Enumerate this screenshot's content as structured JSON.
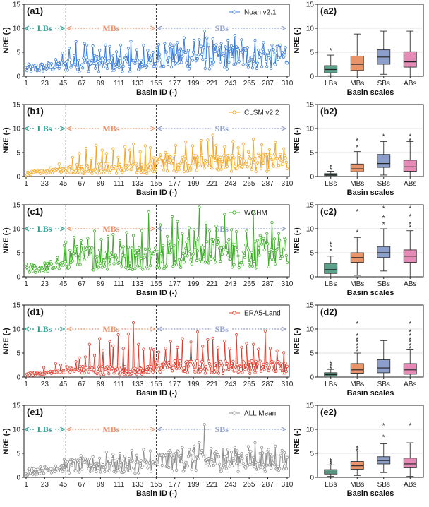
{
  "chart_data": {
    "type": "line+box",
    "basin_ticks": [
      "1",
      "23",
      "45",
      "67",
      "89",
      "111",
      "133",
      "155",
      "177",
      "199",
      "221",
      "243",
      "265",
      "287",
      "310"
    ],
    "n_basins": 310,
    "boundaries": [
      48,
      155
    ],
    "regions": [
      {
        "label": "LBs",
        "from": 1,
        "to": 48,
        "color": "#2a9d8f"
      },
      {
        "label": "MBs",
        "from": 48,
        "to": 155,
        "color": "#e8916a"
      },
      {
        "label": "SBs",
        "from": 155,
        "to": 310,
        "color": "#8f9fcc"
      }
    ],
    "ylim": [
      0,
      15
    ],
    "yticks": [
      "0",
      "5",
      "10",
      "15"
    ],
    "ylabel": "NRE (-)",
    "xlabel_left": "Basin ID (-)",
    "xlabel_right": "Basin scales",
    "box_categories": [
      "LBs",
      "MBs",
      "SBs",
      "ABs"
    ],
    "box_colors": [
      "#5ba08a",
      "#e8956a",
      "#8c9fcb",
      "#e88ab8"
    ],
    "panels": [
      {
        "left_label": "(a1)",
        "right_label": "(a2)",
        "series": "Noah v2.1",
        "color": "#3b7dd8",
        "levels": {
          "LBs": 1.5,
          "MBs": 2.7,
          "SBs": 4.0
        },
        "spikes": [
          [
            52,
            5.8
          ],
          [
            60,
            7.2
          ],
          [
            70,
            6.8
          ],
          [
            73,
            6.5
          ],
          [
            80,
            6.3
          ],
          [
            88,
            5.4
          ],
          [
            95,
            6.5
          ],
          [
            100,
            6.2
          ],
          [
            108,
            5.1
          ],
          [
            113,
            6.5
          ],
          [
            122,
            5.8
          ],
          [
            125,
            7.3
          ],
          [
            132,
            5.5
          ],
          [
            140,
            6.4
          ],
          [
            145,
            5.4
          ],
          [
            151,
            5.0
          ],
          [
            158,
            6.6
          ],
          [
            165,
            6.8
          ],
          [
            172,
            6.7
          ],
          [
            180,
            7.0
          ],
          [
            188,
            8.0
          ],
          [
            200,
            7.5
          ],
          [
            206,
            7.6
          ],
          [
            212,
            9.4
          ],
          [
            215,
            8.0
          ],
          [
            222,
            7.8
          ],
          [
            232,
            6.8
          ],
          [
            240,
            7.5
          ],
          [
            248,
            8.5
          ],
          [
            256,
            7.6
          ],
          [
            263,
            6.0
          ],
          [
            272,
            7.5
          ],
          [
            282,
            7.0
          ],
          [
            292,
            6.5
          ],
          [
            302,
            6.5
          ],
          [
            308,
            6.0
          ],
          [
            36,
            3.5
          ],
          [
            44,
            4.8
          ]
        ],
        "boxes": [
          {
            "min": 0.1,
            "q1": 0.7,
            "median": 1.4,
            "q3": 2.2,
            "max": 4.4,
            "outliers": [
              5.6
            ]
          },
          {
            "min": 0.0,
            "q1": 1.2,
            "median": 2.5,
            "q3": 4.2,
            "max": 8.8,
            "outliers": []
          },
          {
            "min": 0.4,
            "q1": 2.5,
            "median": 4.0,
            "q3": 5.5,
            "max": 9.4,
            "outliers": []
          },
          {
            "min": 0.0,
            "q1": 1.9,
            "median": 3.0,
            "q3": 5.1,
            "max": 9.4,
            "outliers": []
          }
        ]
      },
      {
        "left_label": "(b1)",
        "right_label": "(b2)",
        "series": "CLSM v2.2",
        "color": "#f5a623",
        "levels": {
          "LBs": 0.6,
          "MBs": 1.7,
          "SBs": 2.9
        },
        "spikes": [
          [
            56,
            4.0
          ],
          [
            64,
            4.8
          ],
          [
            72,
            5.9
          ],
          [
            78,
            3.8
          ],
          [
            84,
            6.5
          ],
          [
            91,
            5.5
          ],
          [
            96,
            4.8
          ],
          [
            104,
            5.8
          ],
          [
            110,
            4.0
          ],
          [
            118,
            6.2
          ],
          [
            124,
            5.5
          ],
          [
            128,
            6.8
          ],
          [
            136,
            5.2
          ],
          [
            142,
            6.4
          ],
          [
            148,
            6.0
          ],
          [
            152,
            3.9
          ],
          [
            166,
            5.0
          ],
          [
            178,
            6.5
          ],
          [
            190,
            7.2
          ],
          [
            198,
            6.4
          ],
          [
            208,
            7.5
          ],
          [
            216,
            7.6
          ],
          [
            222,
            8.6
          ],
          [
            226,
            6.5
          ],
          [
            236,
            6.2
          ],
          [
            246,
            7.3
          ],
          [
            252,
            6.0
          ],
          [
            258,
            6.8
          ],
          [
            264,
            5.2
          ],
          [
            270,
            7.8
          ],
          [
            280,
            6.6
          ],
          [
            289,
            5.6
          ],
          [
            296,
            7.1
          ],
          [
            306,
            5.8
          ],
          [
            30,
            1.8
          ],
          [
            40,
            2.6
          ]
        ],
        "boxes": [
          {
            "min": 0.0,
            "q1": 0.2,
            "median": 0.4,
            "q3": 0.6,
            "max": 1.1,
            "outliers": [
              1.6,
              2.2
            ]
          },
          {
            "min": 0.0,
            "q1": 1.0,
            "median": 1.6,
            "q3": 2.6,
            "max": 5.2,
            "outliers": [
              6.3,
              7.7
            ]
          },
          {
            "min": 0.3,
            "q1": 1.9,
            "median": 2.7,
            "q3": 4.6,
            "max": 7.3,
            "outliers": [
              8.6
            ]
          },
          {
            "min": 0.0,
            "q1": 1.1,
            "median": 2.0,
            "q3": 3.4,
            "max": 7.3,
            "outliers": [
              7.7,
              8.6
            ]
          }
        ]
      },
      {
        "left_label": "(c1)",
        "right_label": "(c2)",
        "series": "WGHM",
        "color": "#3fae2a",
        "levels": {
          "LBs": 1.6,
          "MBs": 4.0,
          "SBs": 5.0
        },
        "spikes": [
          [
            46,
            6.5
          ],
          [
            48,
            7.2
          ],
          [
            58,
            8.2
          ],
          [
            66,
            7.5
          ],
          [
            74,
            8.0
          ],
          [
            82,
            9.5
          ],
          [
            90,
            7.8
          ],
          [
            98,
            8.4
          ],
          [
            104,
            8.8
          ],
          [
            112,
            7.5
          ],
          [
            120,
            9.2
          ],
          [
            128,
            8.6
          ],
          [
            138,
            9.6
          ],
          [
            146,
            13.5
          ],
          [
            160,
            10.8
          ],
          [
            168,
            8.4
          ],
          [
            174,
            12.5
          ],
          [
            180,
            11.5
          ],
          [
            186,
            9.0
          ],
          [
            194,
            10.2
          ],
          [
            200,
            9.8
          ],
          [
            206,
            14.5
          ],
          [
            214,
            11.2
          ],
          [
            218,
            9.5
          ],
          [
            226,
            10.6
          ],
          [
            236,
            13.0
          ],
          [
            244,
            9.8
          ],
          [
            250,
            9.4
          ],
          [
            262,
            9.5
          ],
          [
            270,
            13.5
          ],
          [
            278,
            8.6
          ],
          [
            286,
            9.0
          ],
          [
            292,
            11.3
          ],
          [
            300,
            9.0
          ],
          [
            308,
            7.8
          ],
          [
            30,
            3.2
          ],
          [
            38,
            4.0
          ]
        ],
        "boxes": [
          {
            "min": 0.0,
            "q1": 0.7,
            "median": 1.5,
            "q3": 2.8,
            "max": 4.3,
            "outliers": [
              5.6,
              6.4,
              7.0
            ]
          },
          {
            "min": 0.3,
            "q1": 3.0,
            "median": 4.0,
            "q3": 5.0,
            "max": 8.2,
            "outliers": [
              9.5,
              13.8
            ]
          },
          {
            "min": 1.2,
            "q1": 4.0,
            "median": 5.0,
            "q3": 6.3,
            "max": 10.0,
            "outliers": [
              11.2,
              12.5,
              14.5
            ]
          },
          {
            "min": 0.0,
            "q1": 3.0,
            "median": 4.3,
            "q3": 5.6,
            "max": 9.6,
            "outliers": [
              10.5,
              11.2,
              12.8,
              14.5
            ]
          }
        ]
      },
      {
        "left_label": "(d1)",
        "right_label": "(d2)",
        "series": "ERA5-Land",
        "color": "#e03c2c",
        "levels": {
          "LBs": 0.5,
          "MBs": 1.4,
          "SBs": 2.1
        },
        "spikes": [
          [
            22,
            2.0
          ],
          [
            30,
            1.2
          ],
          [
            36,
            2.8
          ],
          [
            42,
            2.5
          ],
          [
            54,
            2.0
          ],
          [
            60,
            3.2
          ],
          [
            64,
            4.0
          ],
          [
            71,
            4.2
          ],
          [
            76,
            6.8
          ],
          [
            82,
            4.5
          ],
          [
            88,
            8.0
          ],
          [
            92,
            5.5
          ],
          [
            100,
            7.4
          ],
          [
            104,
            6.5
          ],
          [
            110,
            8.8
          ],
          [
            116,
            6.0
          ],
          [
            122,
            9.0
          ],
          [
            128,
            11.3
          ],
          [
            134,
            6.8
          ],
          [
            140,
            5.8
          ],
          [
            148,
            6.0
          ],
          [
            152,
            5.7
          ],
          [
            158,
            5.2
          ],
          [
            166,
            6.0
          ],
          [
            172,
            7.4
          ],
          [
            180,
            6.2
          ],
          [
            186,
            8.0
          ],
          [
            196,
            7.3
          ],
          [
            204,
            9.4
          ],
          [
            210,
            6.4
          ],
          [
            216,
            7.8
          ],
          [
            222,
            8.1
          ],
          [
            228,
            6.1
          ],
          [
            236,
            7.5
          ],
          [
            242,
            6.0
          ],
          [
            250,
            8.8
          ],
          [
            256,
            6.2
          ],
          [
            262,
            7.0
          ],
          [
            270,
            6.8
          ],
          [
            276,
            5.8
          ],
          [
            284,
            9.6
          ],
          [
            290,
            6.0
          ],
          [
            298,
            5.5
          ],
          [
            306,
            5.1
          ]
        ],
        "boxes": [
          {
            "min": 0.0,
            "q1": 0.2,
            "median": 0.5,
            "q3": 0.9,
            "max": 1.6,
            "outliers": [
              2.0,
              2.5,
              3.0
            ]
          },
          {
            "min": 0.0,
            "q1": 0.8,
            "median": 1.5,
            "q3": 2.8,
            "max": 5.0,
            "outliers": [
              5.6,
              6.2,
              6.8,
              7.5,
              8.0,
              8.8,
              11.3
            ]
          },
          {
            "min": 0.0,
            "q1": 0.9,
            "median": 1.9,
            "q3": 3.6,
            "max": 7.6,
            "outliers": []
          },
          {
            "min": 0.0,
            "q1": 0.6,
            "median": 1.5,
            "q3": 2.8,
            "max": 5.8,
            "outliers": [
              6.2,
              6.8,
              7.5,
              8.0,
              8.8,
              9.6,
              11.3
            ]
          }
        ]
      },
      {
        "left_label": "(e1)",
        "right_label": "(e2)",
        "series": "ALL Mean",
        "color": "#909090",
        "levels": {
          "LBs": 1.2,
          "MBs": 2.4,
          "SBs": 3.4
        },
        "spikes": [
          [
            46,
            3.7
          ],
          [
            58,
            3.5
          ],
          [
            66,
            4.5
          ],
          [
            74,
            3.8
          ],
          [
            80,
            4.3
          ],
          [
            88,
            4.0
          ],
          [
            96,
            5.3
          ],
          [
            104,
            4.8
          ],
          [
            112,
            5.0
          ],
          [
            118,
            4.4
          ],
          [
            126,
            5.6
          ],
          [
            132,
            4.6
          ],
          [
            140,
            5.8
          ],
          [
            148,
            5.5
          ],
          [
            158,
            4.8
          ],
          [
            166,
            4.6
          ],
          [
            172,
            5.2
          ],
          [
            180,
            5.5
          ],
          [
            186,
            6.2
          ],
          [
            194,
            5.8
          ],
          [
            200,
            6.5
          ],
          [
            206,
            7.2
          ],
          [
            212,
            11.0
          ],
          [
            220,
            6.0
          ],
          [
            226,
            5.4
          ],
          [
            234,
            6.3
          ],
          [
            240,
            5.8
          ],
          [
            248,
            6.2
          ],
          [
            256,
            5.0
          ],
          [
            264,
            6.4
          ],
          [
            272,
            7.2
          ],
          [
            280,
            6.2
          ],
          [
            288,
            5.8
          ],
          [
            296,
            6.5
          ],
          [
            304,
            5.6
          ],
          [
            24,
            2.0
          ],
          [
            36,
            2.4
          ]
        ],
        "boxes": [
          {
            "min": 0.2,
            "q1": 0.7,
            "median": 1.1,
            "q3": 1.6,
            "max": 2.6,
            "outliers": [
              2.9,
              3.3,
              3.7
            ]
          },
          {
            "min": 0.4,
            "q1": 1.7,
            "median": 2.4,
            "q3": 3.3,
            "max": 5.5,
            "outliers": [
              5.8,
              6.3
            ]
          },
          {
            "min": 1.0,
            "q1": 2.8,
            "median": 3.5,
            "q3": 4.3,
            "max": 7.0,
            "outliers": [
              8.6,
              11.0
            ]
          },
          {
            "min": 0.2,
            "q1": 2.0,
            "median": 2.8,
            "q3": 4.0,
            "max": 7.2,
            "outliers": [
              11.0
            ]
          }
        ]
      }
    ]
  }
}
